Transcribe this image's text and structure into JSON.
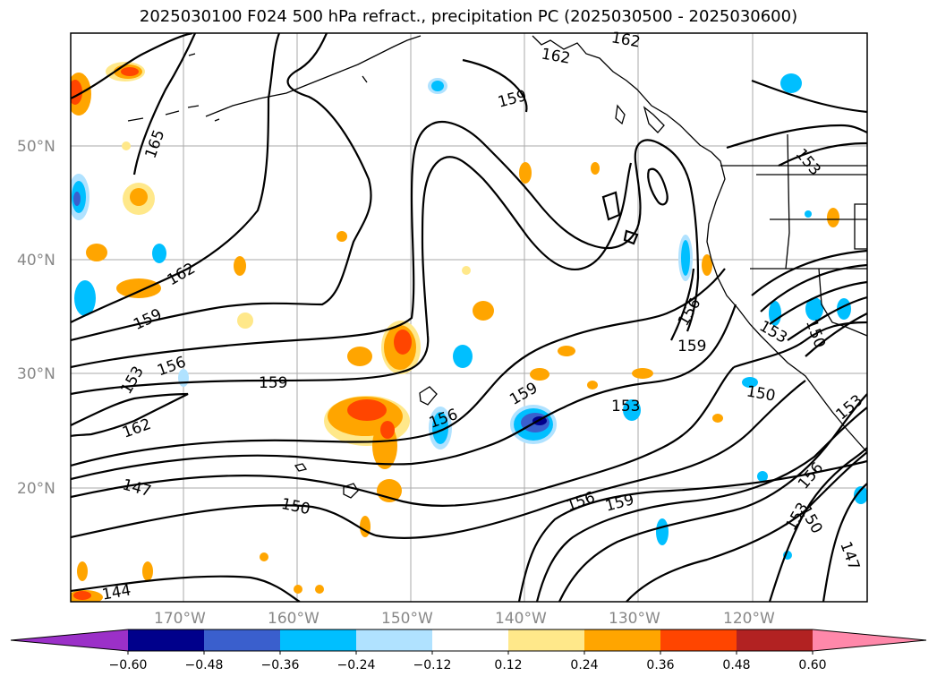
{
  "title": "2025030100 F024 500 hPa refract., precipitation PC (2025030500 - 2025030600)",
  "map": {
    "lat_labels": [
      "50°N",
      "40°N",
      "30°N",
      "20°N"
    ],
    "lon_labels": [
      "170°W",
      "160°W",
      "150°W",
      "140°W",
      "130°W",
      "120°W"
    ]
  },
  "contour_labels": [
    "165",
    "162",
    "159",
    "156",
    "153",
    "162",
    "159",
    "159",
    "156",
    "153",
    "147",
    "150",
    "144",
    "156",
    "159",
    "153",
    "156",
    "159",
    "150",
    "150",
    "153",
    "156",
    "153",
    "150",
    "147",
    "162",
    "162",
    "153"
  ],
  "colorbar": {
    "ticks": [
      "−0.60",
      "−0.48",
      "−0.36",
      "−0.24",
      "−0.12",
      "0.12",
      "0.24",
      "0.36",
      "0.48",
      "0.60"
    ],
    "colors": [
      "#9b30c8",
      "#00008b",
      "#3a5fcd",
      "#00bfff",
      "#b0e2ff",
      "#ffffff",
      "#ffe88a",
      "#ffa500",
      "#ff4500",
      "#b22222",
      "#ff88aa"
    ]
  }
}
